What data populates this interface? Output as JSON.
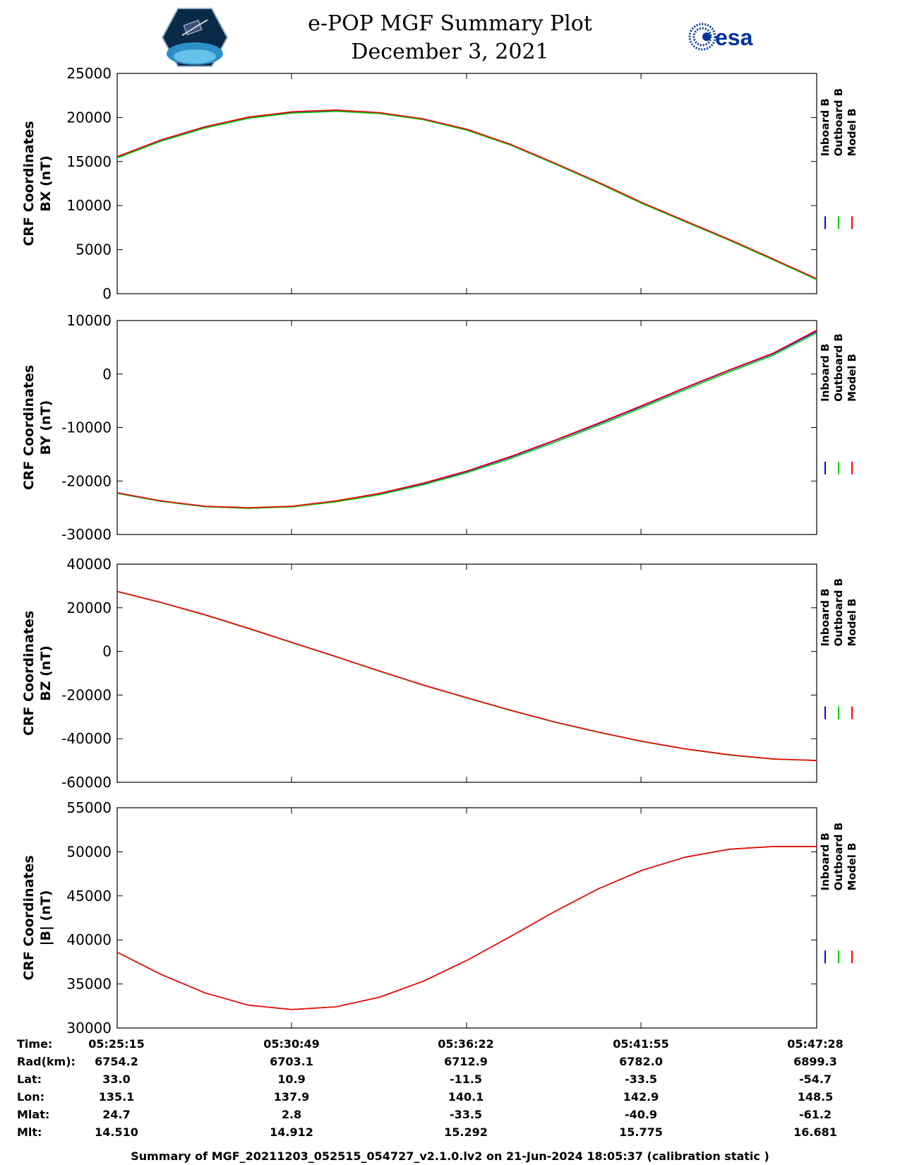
{
  "header": {
    "title_line1": "e-POP MGF Summary Plot",
    "title_line2": "December 3, 2021",
    "logo_left_name": "cassiope-logo",
    "logo_right_text": "esa"
  },
  "colors": {
    "inboard": "#0000ff",
    "outboard": "#00cc00",
    "model": "#ff0000",
    "axis": "#000000"
  },
  "chart_data": [
    {
      "type": "line",
      "ylabel_line1": "CRF Coordinates",
      "ylabel_line2": "BX (nT)",
      "ylim": [
        0,
        25000
      ],
      "yticks": [
        0,
        5000,
        10000,
        15000,
        20000,
        25000
      ],
      "xlim": [
        0,
        1333
      ],
      "legend": [
        "Inboard B",
        "Outboard B",
        "Model B"
      ],
      "legend_position": "right",
      "x": [
        0,
        83,
        167,
        250,
        333,
        417,
        500,
        583,
        667,
        750,
        833,
        917,
        1000,
        1083,
        1167,
        1250,
        1333
      ],
      "series": [
        {
          "name": "Inboard B",
          "values": [
            15500,
            17400,
            18900,
            20000,
            20600,
            20800,
            20500,
            19800,
            18600,
            16900,
            14800,
            12600,
            10300,
            8200,
            6100,
            3900,
            1650
          ]
        },
        {
          "name": "Outboard B",
          "values": [
            15400,
            17300,
            18800,
            19900,
            20500,
            20700,
            20450,
            19750,
            18550,
            16850,
            14750,
            12550,
            10250,
            8150,
            6050,
            3850,
            1600
          ]
        },
        {
          "name": "Model B",
          "values": [
            15550,
            17450,
            18950,
            20050,
            20650,
            20850,
            20550,
            19850,
            18650,
            16950,
            14850,
            12650,
            10350,
            8250,
            6150,
            3950,
            1700
          ]
        }
      ]
    },
    {
      "type": "line",
      "ylabel_line1": "CRF Coordinates",
      "ylabel_line2": "BY (nT)",
      "ylim": [
        -30000,
        10000
      ],
      "yticks": [
        -30000,
        -20000,
        -10000,
        0,
        10000
      ],
      "xlim": [
        0,
        1333
      ],
      "legend": [
        "Inboard B",
        "Outboard B",
        "Model B"
      ],
      "legend_position": "right",
      "x": [
        0,
        83,
        167,
        250,
        333,
        417,
        500,
        583,
        667,
        750,
        833,
        917,
        1000,
        1083,
        1167,
        1250,
        1333
      ],
      "series": [
        {
          "name": "Inboard B",
          "values": [
            -22300,
            -23800,
            -24800,
            -25100,
            -24800,
            -23800,
            -22400,
            -20500,
            -18200,
            -15500,
            -12500,
            -9300,
            -6000,
            -2600,
            700,
            3800,
            8000
          ]
        },
        {
          "name": "Outboard B",
          "values": [
            -22300,
            -23800,
            -24800,
            -25100,
            -24850,
            -23900,
            -22550,
            -20700,
            -18450,
            -15800,
            -12800,
            -9600,
            -6300,
            -2900,
            400,
            3500,
            7700
          ]
        },
        {
          "name": "Model B",
          "values": [
            -22200,
            -23700,
            -24700,
            -25000,
            -24700,
            -23700,
            -22300,
            -20400,
            -18100,
            -15400,
            -12400,
            -9200,
            -5900,
            -2500,
            800,
            3900,
            8200
          ]
        }
      ]
    },
    {
      "type": "line",
      "ylabel_line1": "CRF Coordinates",
      "ylabel_line2": "BZ (nT)",
      "ylim": [
        -60000,
        40000
      ],
      "yticks": [
        -60000,
        -40000,
        -20000,
        0,
        20000,
        40000
      ],
      "xlim": [
        0,
        1333
      ],
      "legend": [
        "Inboard B",
        "Outboard B",
        "Model B"
      ],
      "legend_position": "right",
      "x": [
        0,
        83,
        167,
        250,
        333,
        417,
        500,
        583,
        667,
        750,
        833,
        917,
        1000,
        1083,
        1167,
        1250,
        1333
      ],
      "series": [
        {
          "name": "Inboard B",
          "values": [
            27500,
            22500,
            16800,
            10600,
            4100,
            -2400,
            -9000,
            -15400,
            -21300,
            -27000,
            -32300,
            -37000,
            -41200,
            -44700,
            -47400,
            -49300,
            -50000
          ]
        },
        {
          "name": "Outboard B",
          "values": [
            27400,
            22400,
            16700,
            10500,
            4000,
            -2500,
            -9100,
            -15500,
            -21400,
            -27100,
            -32400,
            -37100,
            -41300,
            -44800,
            -47500,
            -49400,
            -50000
          ]
        },
        {
          "name": "Model B",
          "values": [
            27500,
            22500,
            16800,
            10600,
            4100,
            -2400,
            -9000,
            -15400,
            -21300,
            -27000,
            -32300,
            -37000,
            -41200,
            -44700,
            -47400,
            -49300,
            -50000
          ]
        }
      ]
    },
    {
      "type": "line",
      "ylabel_line1": "CRF Coordinates",
      "ylabel_line2": "|B| (nT)",
      "ylim": [
        30000,
        55000
      ],
      "yticks": [
        30000,
        35000,
        40000,
        45000,
        50000,
        55000
      ],
      "xlim": [
        0,
        1333
      ],
      "legend": [
        "Inboard B",
        "Outboard B",
        "Model B"
      ],
      "legend_position": "right",
      "x": [
        0,
        83,
        167,
        250,
        333,
        417,
        500,
        583,
        667,
        750,
        833,
        917,
        1000,
        1083,
        1167,
        1250,
        1333
      ],
      "series": [
        {
          "name": "Inboard B",
          "values": [
            38600,
            36100,
            34000,
            32600,
            32100,
            32400,
            33500,
            35300,
            37700,
            40400,
            43200,
            45800,
            47900,
            49400,
            50300,
            50600,
            50600
          ]
        },
        {
          "name": "Outboard B",
          "values": [
            38600,
            36100,
            34000,
            32600,
            32100,
            32400,
            33500,
            35300,
            37700,
            40400,
            43200,
            45800,
            47900,
            49400,
            50300,
            50600,
            50600
          ]
        },
        {
          "name": "Model B",
          "values": [
            38600,
            36100,
            34000,
            32600,
            32100,
            32400,
            33500,
            35300,
            37700,
            40400,
            43200,
            45800,
            47900,
            49400,
            50300,
            50600,
            50600
          ]
        }
      ]
    }
  ],
  "orbit_table": {
    "labels": [
      "Time:",
      "Rad(km):",
      "Lat:",
      "Lon:",
      "Mlat:",
      "Mlt:"
    ],
    "columns": [
      [
        "05:25:15",
        "6754.2",
        "33.0",
        "135.1",
        "24.7",
        "14.510"
      ],
      [
        "05:30:49",
        "6703.1",
        "10.9",
        "137.9",
        "2.8",
        "14.912"
      ],
      [
        "05:36:22",
        "6712.9",
        "-11.5",
        "140.1",
        "-33.5",
        "15.292"
      ],
      [
        "05:41:55",
        "6782.0",
        "-33.5",
        "142.9",
        "-40.9",
        "15.775"
      ],
      [
        "05:47:28",
        "6899.3",
        "-54.7",
        "148.5",
        "-61.2",
        "16.681"
      ]
    ]
  },
  "footer": "Summary of MGF_20211203_052515_054727_v2.1.0.lv2 on 21-Jun-2024 18:05:37 (calibration static )"
}
